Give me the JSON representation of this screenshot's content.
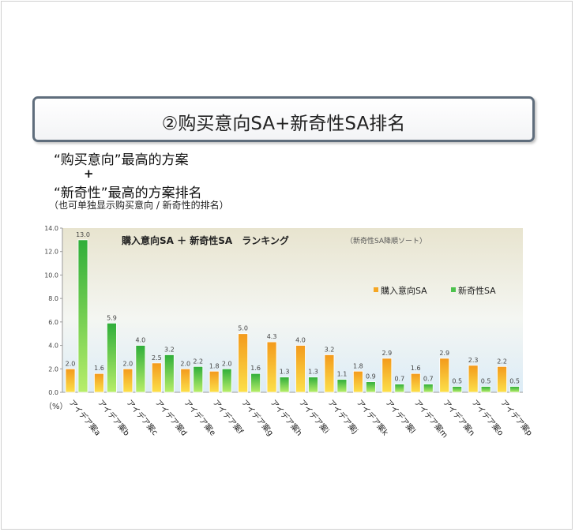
{
  "title_box": {
    "text": "②购买意向SA+新奇性SA排名"
  },
  "notes": {
    "line1": "“购买意向”最高的方案",
    "plus": "+",
    "line2": "“新奇性”最高的方案排名",
    "line3": "（也可单独显示购买意向 / 新奇性的排名）"
  },
  "colors": {
    "series1": "#f5a623",
    "series2": "#4cc24c",
    "plot_top": "#e8e4cf",
    "plot_bottom": "#dcecf7"
  },
  "chart_data": {
    "type": "bar",
    "title": "購入意向SA ＋ 新奇性SA　ランキング",
    "subtitle": "（新奇性SA降順ソート）",
    "ylabel": "（%）",
    "xlabel": "",
    "ylim": [
      0,
      14
    ],
    "yticks": [
      "0.0",
      "2.0",
      "4.0",
      "6.0",
      "8.0",
      "10.0",
      "12.0",
      "14.0"
    ],
    "legend_position": "right",
    "grid": false,
    "categories": [
      "アイデア案a",
      "アイデア案b",
      "アイデア案c",
      "アイデア案d",
      "アイデア案e",
      "アイデア案f",
      "アイデア案g",
      "アイデア案h",
      "アイデア案i",
      "アイデア案j",
      "アイデア案k",
      "アイデア案l",
      "アイデア案m",
      "アイデア案n",
      "アイデア案o",
      "アイデア案p"
    ],
    "series": [
      {
        "name": "購入意向SA",
        "values": [
          2.0,
          1.6,
          2.0,
          2.5,
          2.0,
          1.8,
          5.0,
          4.3,
          4.0,
          3.2,
          1.8,
          2.9,
          1.6,
          2.9,
          2.3,
          2.2
        ]
      },
      {
        "name": "新奇性SA",
        "values": [
          13.0,
          5.9,
          4.0,
          3.2,
          2.2,
          2.0,
          1.6,
          1.3,
          1.3,
          1.1,
          0.9,
          0.7,
          0.7,
          0.5,
          0.5,
          0.5
        ]
      }
    ]
  }
}
